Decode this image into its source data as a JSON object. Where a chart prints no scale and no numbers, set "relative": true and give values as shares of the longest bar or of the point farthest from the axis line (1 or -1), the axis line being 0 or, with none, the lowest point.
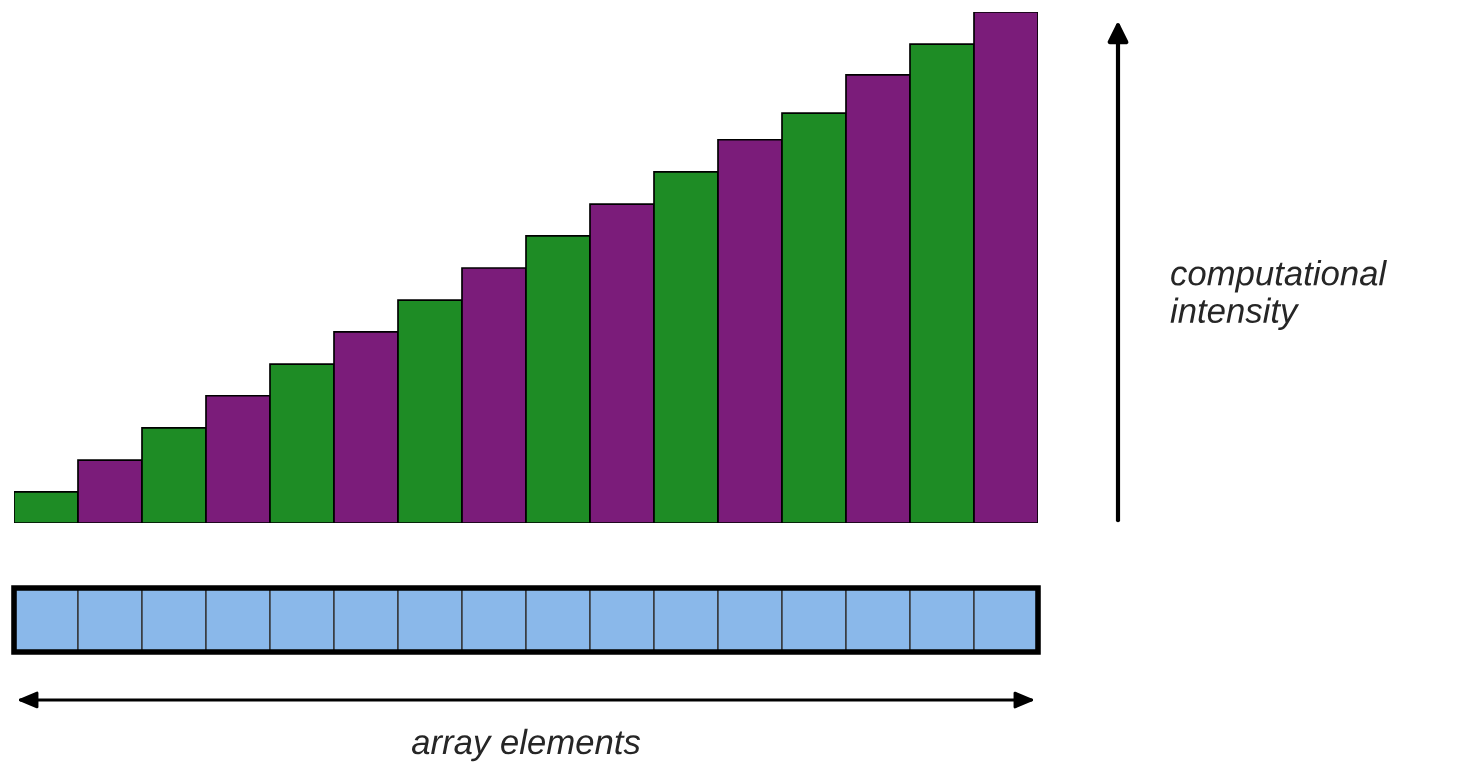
{
  "chart_data": {
    "type": "bar",
    "relative": true,
    "categories": [
      null,
      null,
      null,
      null,
      null,
      null,
      null,
      null,
      null,
      null,
      null,
      null,
      null,
      null,
      null,
      null
    ],
    "values": [
      0.061,
      0.123,
      0.186,
      0.249,
      0.311,
      0.374,
      0.436,
      0.499,
      0.562,
      0.624,
      0.687,
      0.75,
      0.802,
      0.877,
      0.937,
      1
    ],
    "colors": [
      "#1e8c25",
      "#7b1c7a",
      "#1e8c25",
      "#7b1c7a",
      "#1e8c25",
      "#7b1c7a",
      "#1e8c25",
      "#7b1c7a",
      "#1e8c25",
      "#7b1c7a",
      "#1e8c25",
      "#7b1c7a",
      "#1e8c25",
      "#7b1c7a",
      "#1e8c25",
      "#7b1c7a"
    ],
    "annotations": [
      "computational intensity",
      "array elements"
    ],
    "grid": false,
    "legend": false
  }
}
